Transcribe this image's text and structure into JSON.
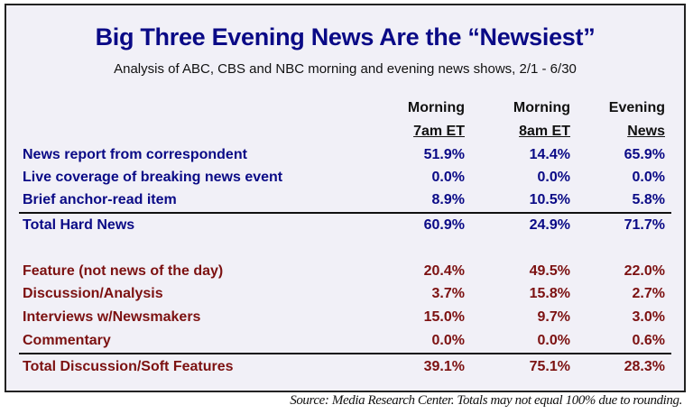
{
  "chart_data": {
    "type": "table",
    "title": "Big Three Evening News Are the “Newsiest”",
    "subtitle": "Analysis of ABC, CBS and NBC morning and evening news shows, 2/1 - 6/30",
    "columns": [
      {
        "line1": "Morning",
        "line2": "7am ET"
      },
      {
        "line1": "Morning",
        "line2": "8am ET"
      },
      {
        "line1": "Evening",
        "line2": "News"
      }
    ],
    "groups": [
      {
        "color": "#0a0a86",
        "rows": [
          {
            "label": "News report from correspondent",
            "values": [
              "51.9%",
              "14.4%",
              "65.9%"
            ]
          },
          {
            "label": "Live coverage of breaking news event",
            "values": [
              "0.0%",
              "0.0%",
              "0.0%"
            ]
          },
          {
            "label": "Brief anchor-read item",
            "values": [
              "8.9%",
              "10.5%",
              "5.8%"
            ]
          }
        ],
        "total": {
          "label": "Total Hard News",
          "values": [
            "60.9%",
            "24.9%",
            "71.7%"
          ]
        }
      },
      {
        "color": "#7c1111",
        "rows": [
          {
            "label": "Feature (not news of the day)",
            "values": [
              "20.4%",
              "49.5%",
              "22.0%"
            ]
          },
          {
            "label": "Discussion/Analysis",
            "values": [
              "3.7%",
              "15.8%",
              "2.7%"
            ]
          },
          {
            "label": "Interviews w/Newsmakers",
            "values": [
              "15.0%",
              "9.7%",
              "3.0%"
            ]
          },
          {
            "label": "Commentary",
            "values": [
              "0.0%",
              "0.0%",
              "0.6%"
            ]
          }
        ],
        "total": {
          "label": "Total Discussion/Soft Features",
          "values": [
            "39.1%",
            "75.1%",
            "28.3%"
          ]
        }
      }
    ],
    "source": "Source: Media Research Center. Totals may not equal 100% due to rounding."
  }
}
